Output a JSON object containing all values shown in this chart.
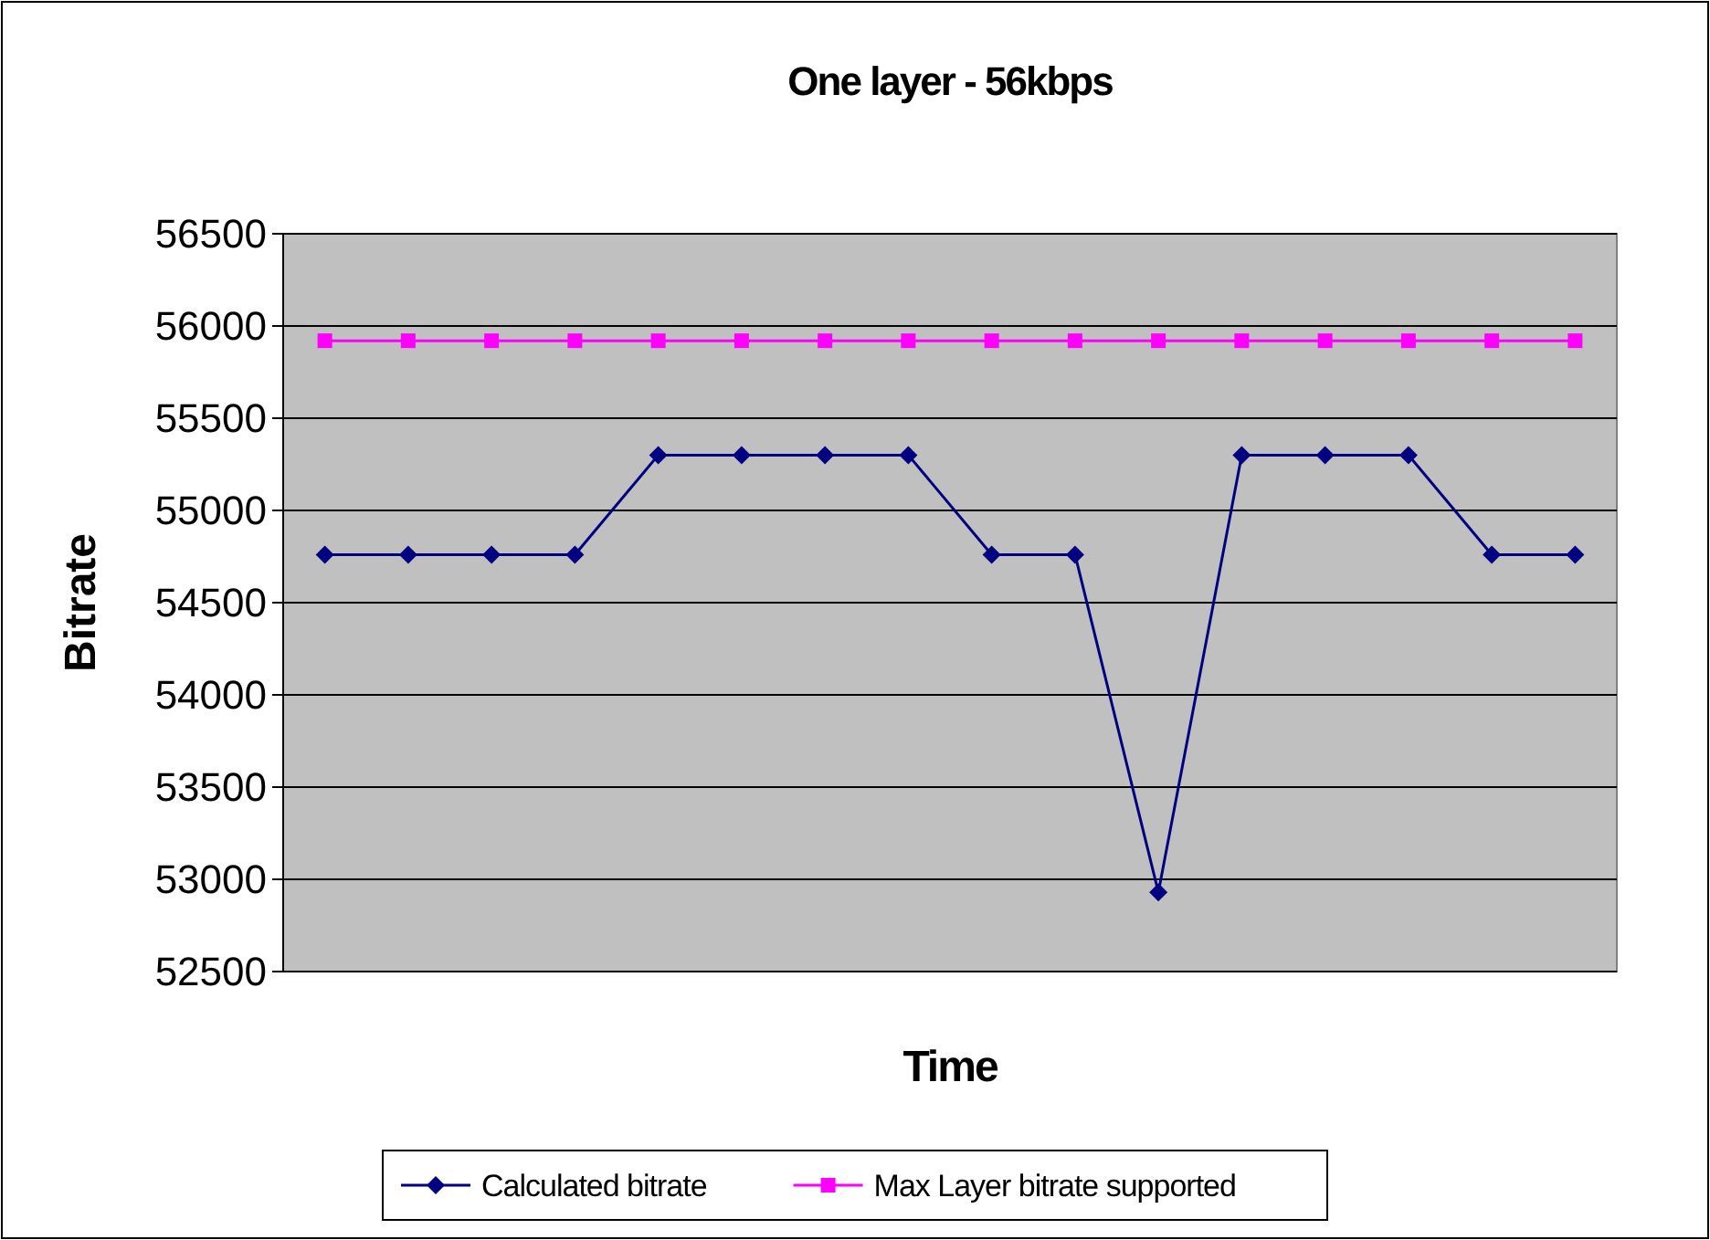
{
  "chart_data": {
    "type": "line",
    "title": "One layer - 56kbps",
    "xlabel": "Time",
    "ylabel": "Bitrate",
    "categories": [
      null,
      null,
      null,
      null,
      null,
      null,
      null,
      null,
      null,
      null,
      null,
      null,
      null,
      null,
      null,
      null
    ],
    "series": [
      {
        "name": "Calculated bitrate",
        "color": "#000080",
        "marker": "diamond",
        "values": [
          54760,
          54760,
          54760,
          54760,
          55300,
          55300,
          55300,
          55300,
          54760,
          54760,
          52930,
          55300,
          55300,
          55300,
          54760,
          54760
        ]
      },
      {
        "name": "Max Layer bitrate supported",
        "color": "#ff00ff",
        "marker": "square",
        "values": [
          55920,
          55920,
          55920,
          55920,
          55920,
          55920,
          55920,
          55920,
          55920,
          55920,
          55920,
          55920,
          55920,
          55920,
          55920,
          55920
        ]
      }
    ],
    "ylim": [
      52500,
      56500
    ],
    "yticks": [
      52500,
      53000,
      53500,
      54000,
      54500,
      55000,
      55500,
      56000,
      56500
    ],
    "grid": "y",
    "legend": "bottom",
    "line_style": "solid"
  }
}
